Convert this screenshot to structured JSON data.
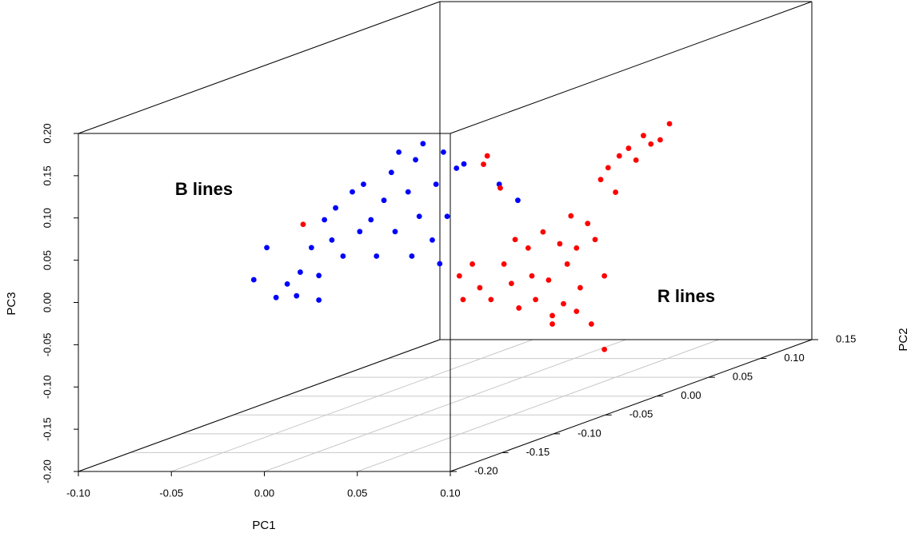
{
  "chart_data": {
    "type": "scatter3d",
    "xlabel": "PC1",
    "ylabel": "PC2",
    "zlabel": "PC3",
    "xlim": [
      -0.1,
      0.1
    ],
    "ylim": [
      -0.2,
      0.15
    ],
    "zlim": [
      -0.2,
      0.2
    ],
    "xticks": [
      {
        "value": -0.1,
        "label": "-0.10"
      },
      {
        "value": -0.05,
        "label": "-0.05"
      },
      {
        "value": 0,
        "label": "0.00"
      },
      {
        "value": 0.05,
        "label": "0.05"
      },
      {
        "value": 0.1,
        "label": "0.10"
      }
    ],
    "yticks": [
      {
        "value": -0.2,
        "label": "-0.20"
      },
      {
        "value": -0.15,
        "label": "-0.15"
      },
      {
        "value": -0.1,
        "label": "-0.10"
      },
      {
        "value": -0.05,
        "label": "-0.05"
      },
      {
        "value": 0,
        "label": "0.00"
      },
      {
        "value": 0.05,
        "label": "0.05"
      },
      {
        "value": 0.1,
        "label": "0.10"
      },
      {
        "value": 0.15,
        "label": "0.15"
      }
    ],
    "zticks": [
      {
        "value": -0.2,
        "label": "-0.20"
      },
      {
        "value": -0.15,
        "label": "-0.15"
      },
      {
        "value": -0.1,
        "label": "-0.10"
      },
      {
        "value": -0.05,
        "label": "-0.05"
      },
      {
        "value": 0,
        "label": "0.00"
      },
      {
        "value": 0.05,
        "label": "0.05"
      },
      {
        "value": 0.1,
        "label": "0.10"
      },
      {
        "value": 0.15,
        "label": "0.15"
      },
      {
        "value": 0.2,
        "label": "0.20"
      }
    ],
    "grid": true,
    "series": [
      {
        "name": "B lines",
        "color": "#0000ff",
        "x": [
          -0.089,
          -0.082,
          -0.077,
          -0.071,
          -0.064,
          -0.058,
          -0.054,
          -0.051,
          -0.047,
          -0.045,
          -0.041,
          -0.036,
          -0.032,
          -0.03,
          -0.026,
          -0.023,
          -0.019,
          -0.015,
          -0.013,
          -0.011,
          -0.006,
          -0.004,
          -0.002,
          0.0,
          0.002,
          0.007,
          0.009,
          0.011,
          0.013,
          0.015,
          0.02,
          0.024,
          -0.054,
          -0.066,
          0.043,
          0.053
        ],
        "y": [
          -0.05,
          -0.05,
          -0.05,
          -0.05,
          -0.05,
          -0.05,
          -0.05,
          -0.05,
          -0.05,
          -0.05,
          -0.05,
          -0.05,
          -0.05,
          -0.05,
          -0.05,
          -0.05,
          -0.05,
          -0.05,
          -0.05,
          -0.05,
          -0.05,
          -0.05,
          -0.05,
          -0.05,
          -0.05,
          -0.05,
          -0.05,
          -0.05,
          -0.05,
          -0.05,
          -0.05,
          -0.05,
          -0.05,
          -0.05,
          -0.05,
          -0.05
        ],
        "z": [
          -0.04,
          -0.002,
          -0.061,
          -0.045,
          -0.031,
          -0.002,
          -0.035,
          0.031,
          0.007,
          0.045,
          -0.012,
          0.064,
          0.017,
          0.073,
          0.031,
          -0.012,
          0.054,
          0.087,
          0.017,
          0.111,
          0.064,
          -0.012,
          0.102,
          0.035,
          0.121,
          0.007,
          0.073,
          -0.021,
          0.111,
          0.035,
          0.092,
          0.097,
          -0.064,
          -0.059,
          0.073,
          0.054
        ]
      },
      {
        "name": "R lines",
        "color": "#ff0000",
        "x": [
          -0.034,
          -0.032,
          -0.027,
          -0.023,
          -0.019,
          -0.021,
          -0.017,
          -0.012,
          -0.01,
          -0.006,
          -0.004,
          -0.002,
          0.003,
          0.005,
          0.007,
          0.011,
          0.014,
          0.016,
          0.02,
          0.022,
          0.024,
          0.026,
          0.029,
          0.031,
          0.035,
          0.037,
          0.039,
          0.042,
          0.044,
          0.046,
          0.05,
          0.052,
          0.057,
          0.061,
          0.065,
          0.069,
          0.074,
          0.079,
          0.044,
          0.016,
          0.029,
          -0.118
        ],
        "y": [
          0.05,
          0.05,
          0.05,
          0.05,
          0.05,
          0.05,
          0.05,
          0.05,
          0.05,
          0.05,
          0.05,
          0.05,
          0.05,
          0.05,
          0.05,
          0.05,
          0.05,
          0.05,
          0.05,
          0.05,
          0.05,
          0.05,
          0.05,
          0.05,
          0.05,
          0.05,
          0.05,
          0.05,
          0.05,
          0.05,
          0.05,
          0.05,
          0.05,
          0.05,
          0.05,
          0.05,
          0.05,
          0.05,
          0.05,
          0.05,
          0.05,
          0.05
        ],
        "z": [
          -0.08,
          -0.108,
          -0.066,
          -0.094,
          0.062,
          0.052,
          -0.108,
          0.024,
          -0.066,
          -0.089,
          -0.037,
          -0.118,
          -0.047,
          -0.08,
          -0.108,
          -0.028,
          -0.085,
          -0.127,
          -0.042,
          -0.113,
          -0.066,
          -0.009,
          -0.047,
          -0.094,
          -0.018,
          -0.137,
          -0.037,
          0.034,
          -0.08,
          0.048,
          0.019,
          0.062,
          0.071,
          0.057,
          0.086,
          0.076,
          0.081,
          0.1,
          -0.167,
          -0.137,
          -0.122,
          -0.019
        ]
      }
    ]
  }
}
